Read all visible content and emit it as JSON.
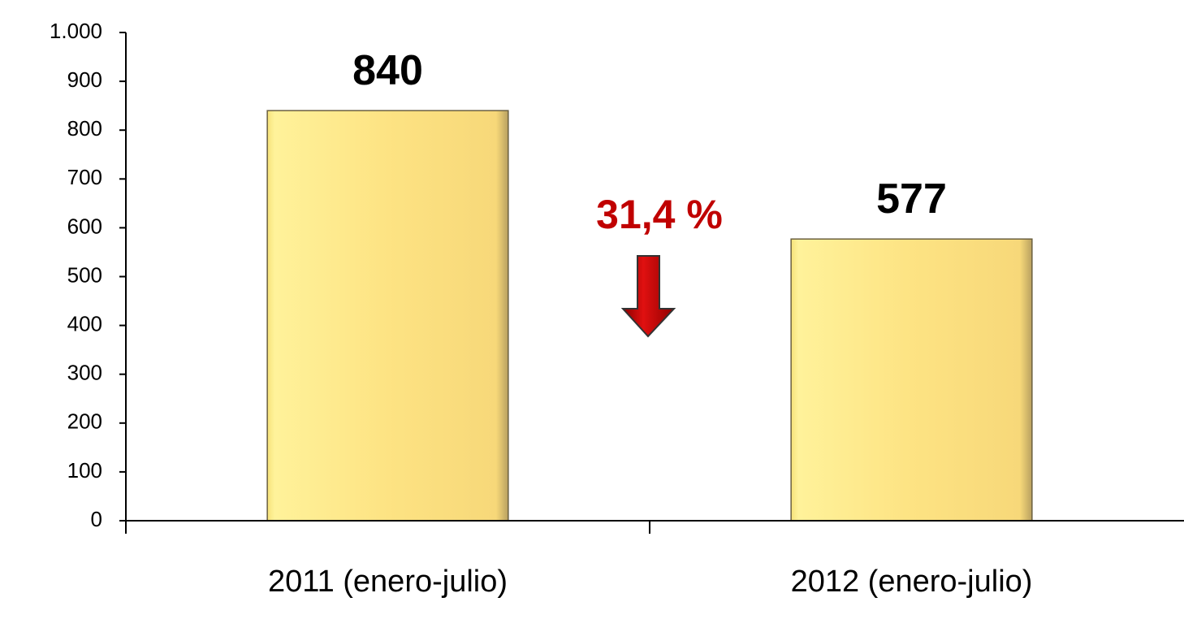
{
  "chart_data": {
    "type": "bar",
    "categories": [
      "2011 (enero-julio)",
      "2012 (enero-julio)"
    ],
    "values": [
      840,
      577
    ],
    "color": "#fde383",
    "ylim": [
      0,
      1000
    ],
    "yticks": [
      0,
      100,
      200,
      300,
      400,
      500,
      600,
      700,
      800,
      900,
      {
        "value": 1000,
        "label": "1.000"
      }
    ],
    "annotation": "31,4 %",
    "grid": false
  }
}
